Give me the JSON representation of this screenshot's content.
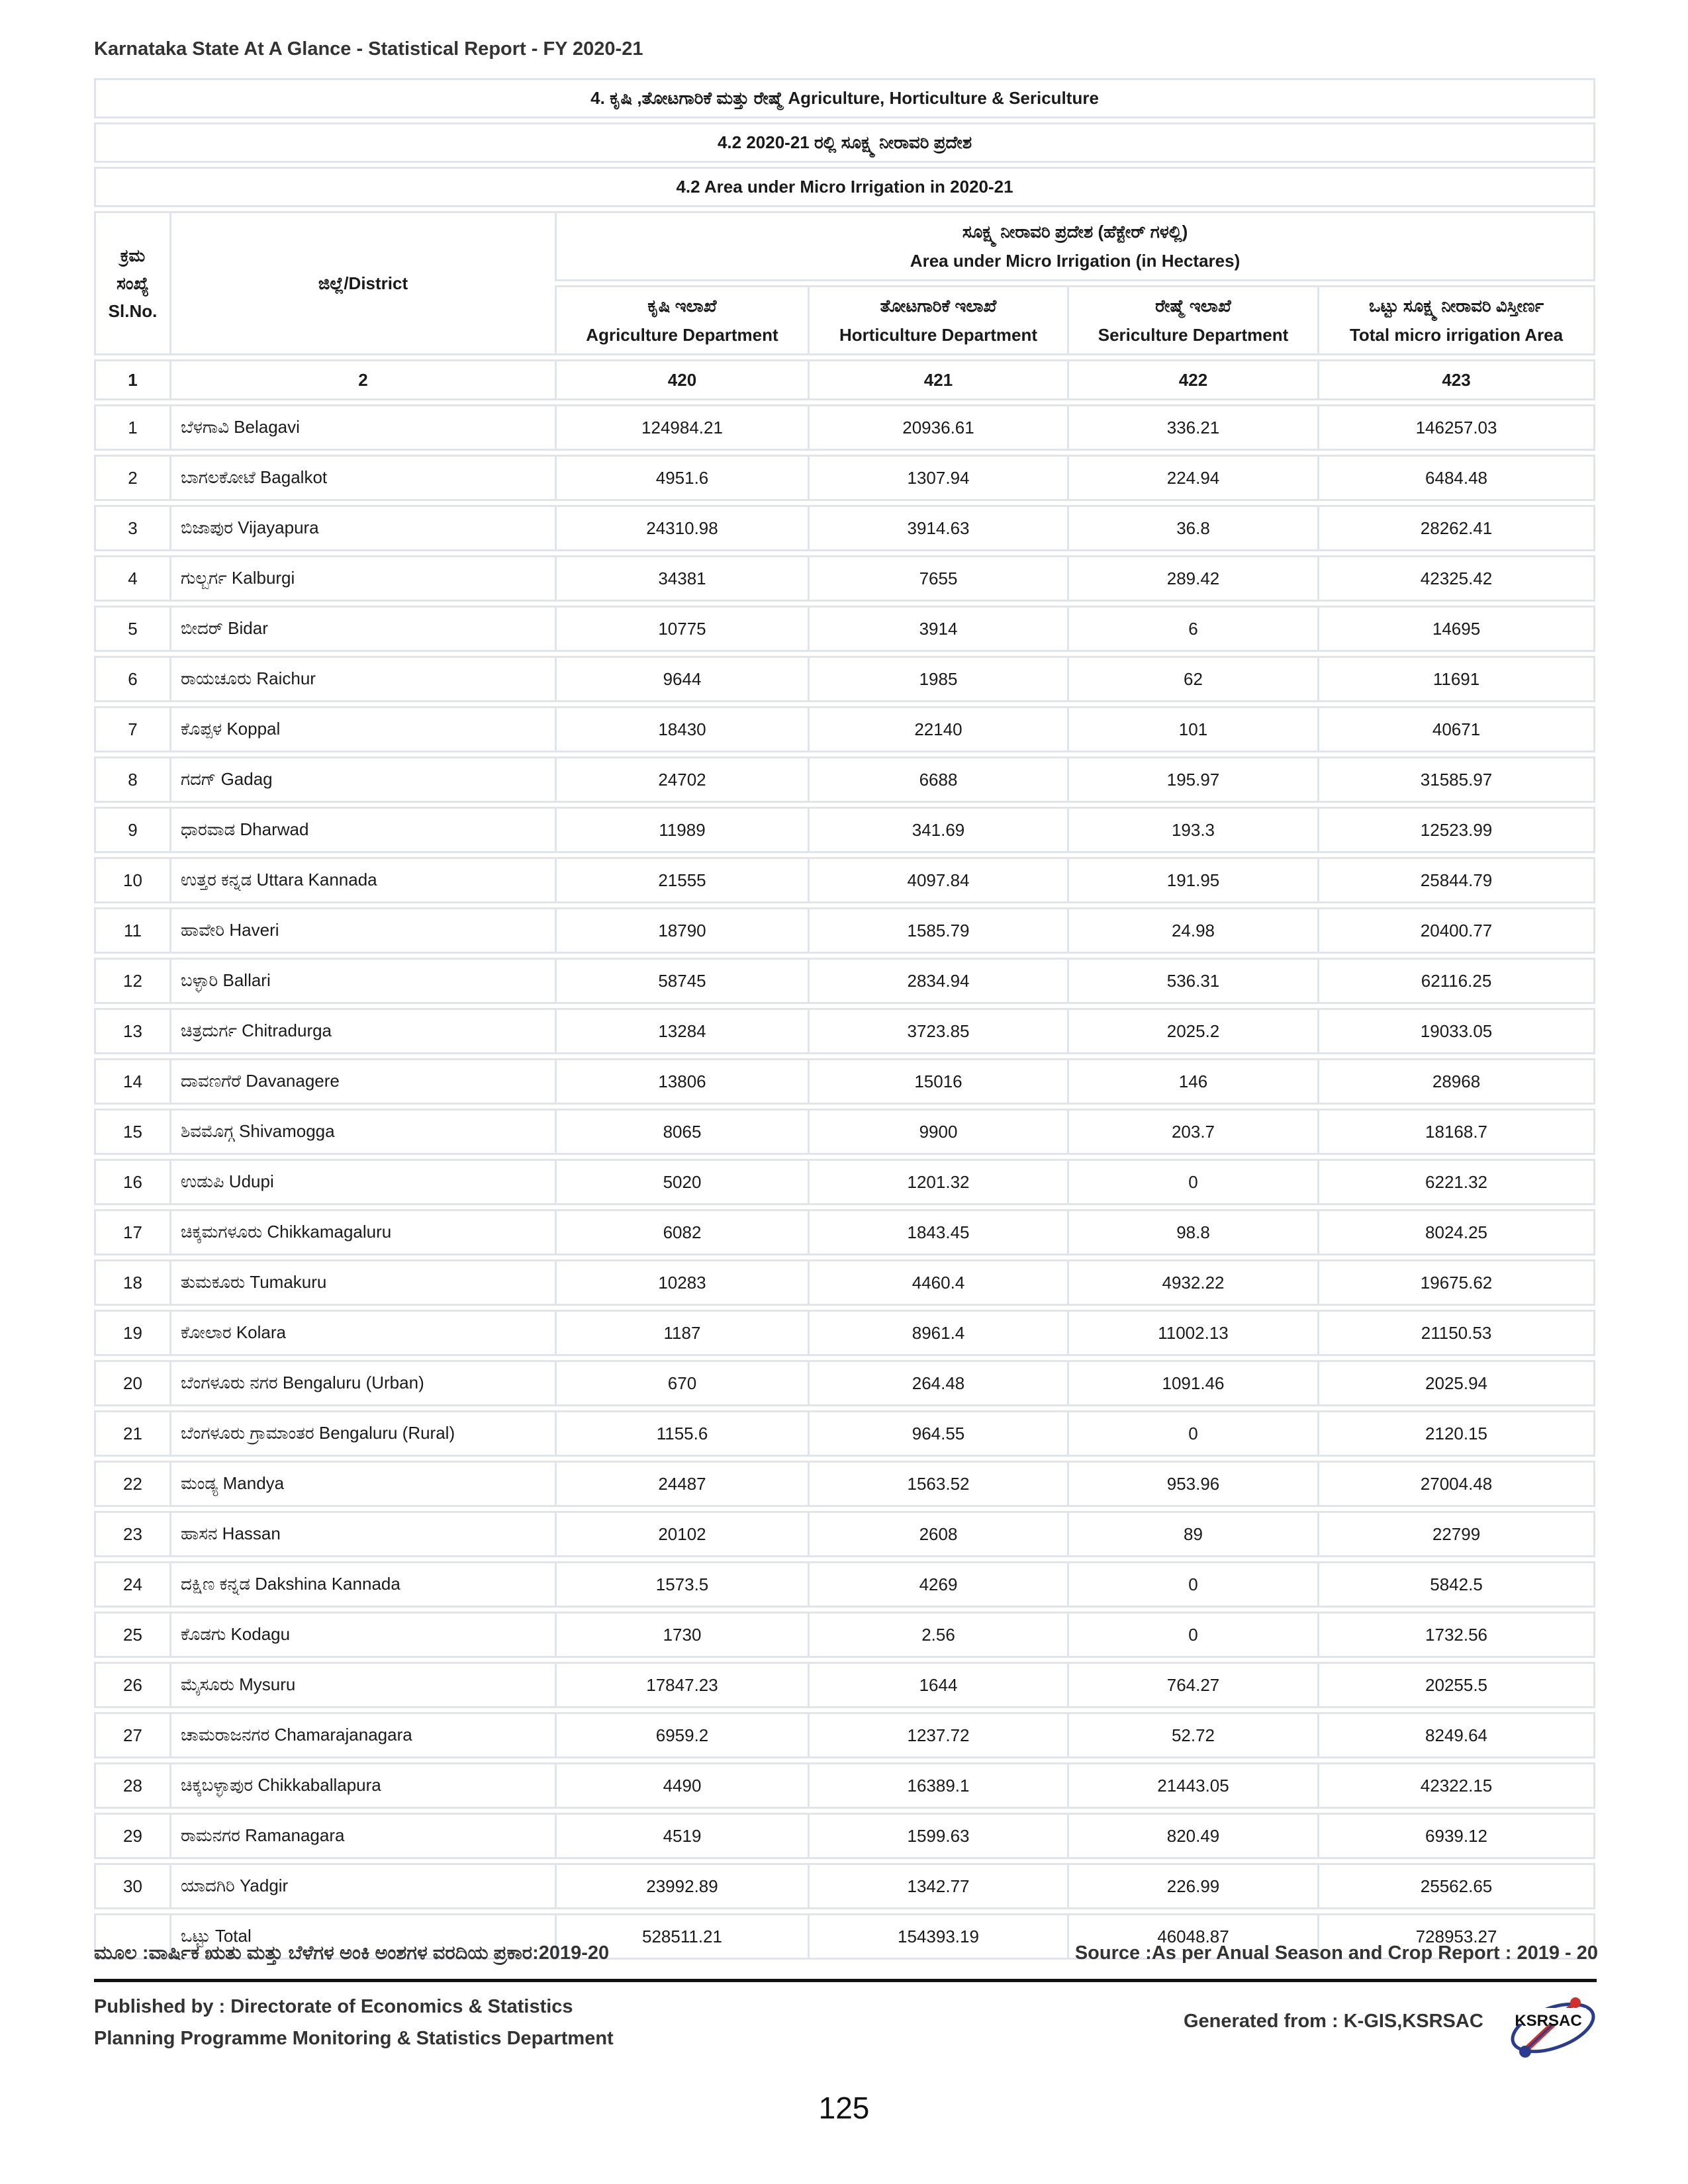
{
  "report_title": "Karnataka State At A Glance - Statistical Report - FY 2020-21",
  "banners": {
    "section": "4. ಕೃಷಿ ,ತೋಟಗಾರಿಕೆ ಮತ್ತು ರೇಷ್ಮೆ Agriculture, Horticulture & Sericulture",
    "subtitle_kn": "4.2 2020-21 ರಲ್ಲಿ ಸೂಕ್ಷ್ಮ ನೀರಾವರಿ ಪ್ರದೇಶ",
    "subtitle_en": "4.2 Area under Micro Irrigation in 2020-21"
  },
  "headers": {
    "slno_kn": "ಕ್ರಮ ಸಂಖ್ಯೆ",
    "slno_en": "Sl.No.",
    "district": "ಜಿಲ್ಲೆ/District",
    "group_kn": "ಸೂಕ್ಷ್ಮ ನೀರಾವರಿ ಪ್ರದೇಶ (ಹೆಕ್ಟೇರ್ ಗಳಲ್ಲಿ)",
    "group_en": "Area under Micro Irrigation (in Hectares)",
    "agri_kn": "ಕೃಷಿ ಇಲಾಖೆ",
    "agri_en": "Agriculture Department",
    "horti_kn": "ತೋಟಗಾರಿಕೆ ಇಲಾಖೆ",
    "horti_en": "Horticulture Department",
    "seri_kn": "ರೇಷ್ಮೆ ಇಲಾಖೆ",
    "seri_en": "Sericulture Department",
    "total_kn": "ಒಟ್ಟು ಸೂಕ್ಷ್ಮ ನೀರಾವರಿ ವಿಸ್ತೀರ್ಣ",
    "total_en": "Total micro irrigation Area"
  },
  "column_numbers": [
    "1",
    "2",
    "420",
    "421",
    "422",
    "423"
  ],
  "rows": [
    [
      "1",
      "ಬೆಳಗಾವಿ Belagavi",
      "124984.21",
      "20936.61",
      "336.21",
      "146257.03"
    ],
    [
      "2",
      "ಬಾಗಲಕೋಟೆ Bagalkot",
      "4951.6",
      "1307.94",
      "224.94",
      "6484.48"
    ],
    [
      "3",
      "ಬಿಜಾಪುರ Vijayapura",
      "24310.98",
      "3914.63",
      "36.8",
      "28262.41"
    ],
    [
      "4",
      "ಗುಲ್ಬರ್ಗ Kalburgi",
      "34381",
      "7655",
      "289.42",
      "42325.42"
    ],
    [
      "5",
      "ಬೀದರ್ Bidar",
      "10775",
      "3914",
      "6",
      "14695"
    ],
    [
      "6",
      "ರಾಯಚೂರು Raichur",
      "9644",
      "1985",
      "62",
      "11691"
    ],
    [
      "7",
      "ಕೊಪ್ಪಳ Koppal",
      "18430",
      "22140",
      "101",
      "40671"
    ],
    [
      "8",
      "ಗದಗ್ Gadag",
      "24702",
      "6688",
      "195.97",
      "31585.97"
    ],
    [
      "9",
      "ಧಾರವಾಡ Dharwad",
      "11989",
      "341.69",
      "193.3",
      "12523.99"
    ],
    [
      "10",
      "ಉತ್ತರ ಕನ್ನಡ Uttara Kannada",
      "21555",
      "4097.84",
      "191.95",
      "25844.79"
    ],
    [
      "11",
      "ಹಾವೇರಿ Haveri",
      "18790",
      "1585.79",
      "24.98",
      "20400.77"
    ],
    [
      "12",
      "ಬಳ್ಳಾರಿ Ballari",
      "58745",
      "2834.94",
      "536.31",
      "62116.25"
    ],
    [
      "13",
      "ಚಿತ್ರದುರ್ಗ Chitradurga",
      "13284",
      "3723.85",
      "2025.2",
      "19033.05"
    ],
    [
      "14",
      "ದಾವಣಗೆರೆ Davanagere",
      "13806",
      "15016",
      "146",
      "28968"
    ],
    [
      "15",
      "ಶಿವಮೊಗ್ಗ Shivamogga",
      "8065",
      "9900",
      "203.7",
      "18168.7"
    ],
    [
      "16",
      "ಉಡುಪಿ Udupi",
      "5020",
      "1201.32",
      "0",
      "6221.32"
    ],
    [
      "17",
      "ಚಿಕ್ಕಮಗಳೂರು Chikkamagaluru",
      "6082",
      "1843.45",
      "98.8",
      "8024.25"
    ],
    [
      "18",
      "ತುಮಕೂರು Tumakuru",
      "10283",
      "4460.4",
      "4932.22",
      "19675.62"
    ],
    [
      "19",
      "ಕೋಲಾರ Kolara",
      "1187",
      "8961.4",
      "11002.13",
      "21150.53"
    ],
    [
      "20",
      "ಬೆಂಗಳೂರು ನಗರ Bengaluru (Urban)",
      "670",
      "264.48",
      "1091.46",
      "2025.94"
    ],
    [
      "21",
      "ಬೆಂಗಳೂರು ಗ್ರಾಮಾಂತರ Bengaluru (Rural)",
      "1155.6",
      "964.55",
      "0",
      "2120.15"
    ],
    [
      "22",
      "ಮಂಡ್ಯ Mandya",
      "24487",
      "1563.52",
      "953.96",
      "27004.48"
    ],
    [
      "23",
      "ಹಾಸನ Hassan",
      "20102",
      "2608",
      "89",
      "22799"
    ],
    [
      "24",
      "ದಕ್ಷಿಣ ಕನ್ನಡ Dakshina Kannada",
      "1573.5",
      "4269",
      "0",
      "5842.5"
    ],
    [
      "25",
      "ಕೊಡಗು Kodagu",
      "1730",
      "2.56",
      "0",
      "1732.56"
    ],
    [
      "26",
      "ಮೈಸೂರು Mysuru",
      "17847.23",
      "1644",
      "764.27",
      "20255.5"
    ],
    [
      "27",
      "ಚಾಮರಾಜನಗರ Chamarajanagara",
      "6959.2",
      "1237.72",
      "52.72",
      "8249.64"
    ],
    [
      "28",
      "ಚಿಕ್ಕಬಳ್ಳಾಪುರ Chikkaballapura",
      "4490",
      "16389.1",
      "21443.05",
      "42322.15"
    ],
    [
      "29",
      "ರಾಮನಗರ Ramanagara",
      "4519",
      "1599.63",
      "820.49",
      "6939.12"
    ],
    [
      "30",
      "ಯಾದಗಿರಿ Yadgir",
      "23992.89",
      "1342.77",
      "226.99",
      "25562.65"
    ],
    [
      "",
      "ಒಟ್ಟು Total",
      "528511.21",
      "154393.19",
      "46048.87",
      "728953.27"
    ]
  ],
  "source_kn": "ಮೂಲ :ವಾರ್ಷಿಕ ಋತು ಮತ್ತು ಬೆಳೆಗಳ ಅಂಕಿ ಅಂಶಗಳ ವರದಿಯ ಪ್ರಕಾರ:2019-20",
  "source_en": "Source :As per Anual Season and Crop Report : 2019 - 20",
  "published_by": "Published by : Directorate of Economics & Statistics",
  "department": "Planning Programme Monitoring & Statistics Department",
  "generated_from": "Generated from : K-GIS,KSRSAC",
  "logo_text": "KSRSAC",
  "page_number": "125",
  "colors": {
    "border": "#e1e4ea",
    "text": "#1a1a1a",
    "heading": "#333333",
    "logo_blue": "#2a3c8f",
    "logo_red": "#d0302b"
  }
}
